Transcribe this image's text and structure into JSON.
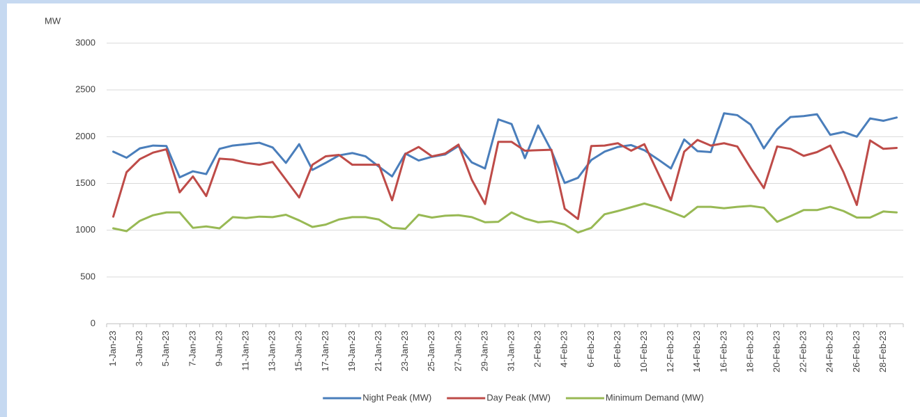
{
  "chart_data": {
    "type": "line",
    "y_label": "MW",
    "categories": [
      "1-Jan-23",
      null,
      "3-Jan-23",
      null,
      "5-Jan-23",
      null,
      "7-Jan-23",
      null,
      "9-Jan-23",
      null,
      "11-Jan-23",
      null,
      "13-Jan-23",
      null,
      "15-Jan-23",
      null,
      "17-Jan-23",
      null,
      "19-Jan-23",
      null,
      "21-Jan-23",
      null,
      "23-Jan-23",
      null,
      "25-Jan-23",
      null,
      "27-Jan-23",
      null,
      "29-Jan-23",
      null,
      "31-Jan-23",
      null,
      "2-Feb-23",
      null,
      "4-Feb-23",
      null,
      "6-Feb-23",
      null,
      "8-Feb-23",
      null,
      "10-Feb-23",
      null,
      "12-Feb-23",
      null,
      "14-Feb-23",
      null,
      "16-Feb-23",
      null,
      "18-Feb-23",
      null,
      "20-Feb-23",
      null,
      "22-Feb-23",
      null,
      "24-Feb-23",
      null,
      "26-Feb-23",
      null,
      "28-Feb-23",
      null
    ],
    "series": [
      {
        "name": "Night Peak (MW)",
        "color": "#4a7ebb",
        "values": [
          1840,
          1775,
          1875,
          1905,
          1900,
          1565,
          1630,
          1600,
          1870,
          1905,
          1920,
          1935,
          1885,
          1720,
          1920,
          1645,
          1720,
          1800,
          1825,
          1790,
          1680,
          1575,
          1820,
          1745,
          1785,
          1810,
          1900,
          1725,
          1660,
          2185,
          2135,
          1770,
          2120,
          1850,
          1505,
          1560,
          1750,
          1840,
          1890,
          1910,
          1855,
          1760,
          1660,
          1970,
          1845,
          1835,
          2250,
          2230,
          2130,
          1875,
          2080,
          2210,
          2220,
          2240,
          2020,
          2050,
          2000,
          2195,
          2170,
          2205
        ]
      },
      {
        "name": "Day Peak (MW)",
        "color": "#be4b48",
        "values": [
          1145,
          1620,
          1760,
          1830,
          1865,
          1405,
          1575,
          1365,
          1765,
          1755,
          1720,
          1700,
          1730,
          1540,
          1350,
          1700,
          1790,
          1805,
          1700,
          1700,
          1700,
          1320,
          1815,
          1890,
          1790,
          1820,
          1915,
          1540,
          1280,
          1945,
          1945,
          1850,
          1855,
          1860,
          1230,
          1120,
          1900,
          1905,
          1930,
          1850,
          1920,
          1620,
          1320,
          1840,
          1965,
          1905,
          1930,
          1895,
          1665,
          1450,
          1895,
          1870,
          1795,
          1835,
          1905,
          1620,
          1270,
          1960,
          1870,
          1880
        ]
      },
      {
        "name": "Minimum Demand (MW)",
        "color": "#98b954",
        "values": [
          1020,
          990,
          1100,
          1160,
          1190,
          1190,
          1025,
          1040,
          1020,
          1140,
          1130,
          1145,
          1140,
          1165,
          1105,
          1035,
          1060,
          1115,
          1140,
          1140,
          1115,
          1025,
          1015,
          1165,
          1135,
          1155,
          1160,
          1140,
          1085,
          1090,
          1190,
          1125,
          1085,
          1095,
          1060,
          975,
          1025,
          1170,
          1205,
          1245,
          1285,
          1245,
          1195,
          1140,
          1250,
          1250,
          1235,
          1250,
          1260,
          1240,
          1090,
          1150,
          1215,
          1215,
          1250,
          1205,
          1135,
          1135,
          1200,
          1190
        ]
      }
    ],
    "ylim": [
      0,
      3000
    ],
    "yticks": [
      0,
      500,
      1000,
      1500,
      2000,
      2500,
      3000
    ],
    "grid": true,
    "legend": "bottom"
  }
}
